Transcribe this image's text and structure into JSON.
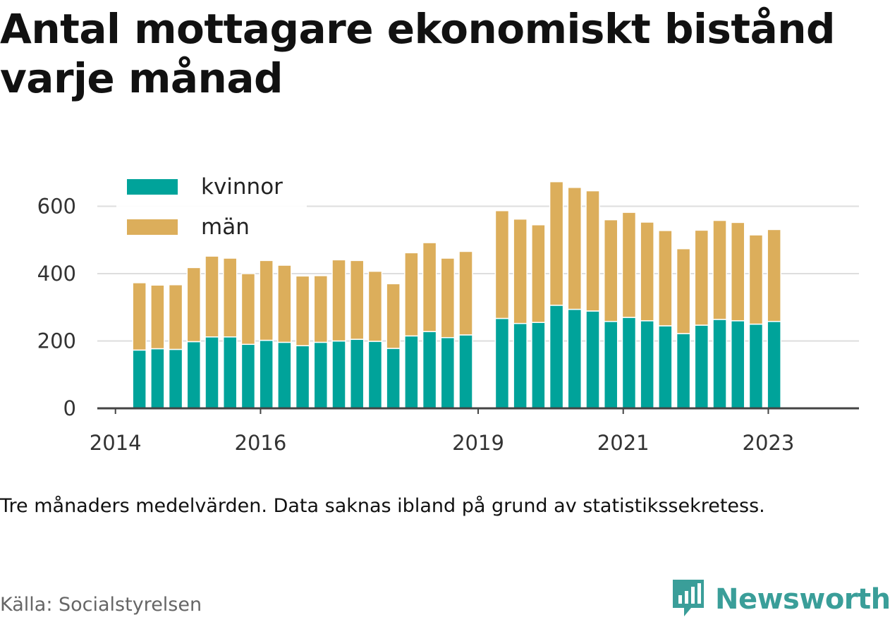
{
  "chart_data": {
    "type": "bar",
    "stacked": true,
    "title": "Antal mottagare ekonomiskt bistånd varje månad",
    "xlabel": "",
    "ylabel": "",
    "ylim": [
      0,
      700
    ],
    "yticks": [
      0,
      200,
      400,
      600
    ],
    "xticks": [
      2014,
      2016,
      2019,
      2021,
      2023
    ],
    "xlim": [
      2013.75,
      2024.25
    ],
    "grid": true,
    "legend_position": "top-left",
    "colors": {
      "kvinnor": "#00a39a",
      "man": "#dcae5b"
    },
    "x": [
      2014.33,
      2014.58,
      2014.83,
      2015.08,
      2015.33,
      2015.58,
      2015.83,
      2016.08,
      2016.33,
      2016.58,
      2016.83,
      2017.08,
      2017.33,
      2017.58,
      2017.83,
      2018.08,
      2018.33,
      2018.58,
      2018.83,
      2019.33,
      2019.58,
      2019.83,
      2020.08,
      2020.33,
      2020.58,
      2020.83,
      2021.08,
      2021.33,
      2021.58,
      2021.83,
      2022.08,
      2022.33,
      2022.58,
      2022.83,
      2023.08
    ],
    "series": [
      {
        "name": "kvinnor",
        "values": [
          173,
          177,
          175,
          198,
          212,
          212,
          190,
          202,
          196,
          186,
          196,
          200,
          205,
          199,
          178,
          215,
          228,
          210,
          218,
          267,
          252,
          255,
          306,
          294,
          289,
          258,
          270,
          260,
          245,
          222,
          247,
          264,
          260,
          250,
          258
        ]
      },
      {
        "name": "män",
        "values": [
          200,
          189,
          192,
          220,
          240,
          234,
          210,
          237,
          229,
          207,
          198,
          241,
          234,
          208,
          192,
          247,
          264,
          236,
          248,
          320,
          310,
          290,
          367,
          362,
          357,
          302,
          312,
          293,
          283,
          252,
          282,
          294,
          292,
          265,
          273
        ]
      }
    ]
  },
  "note": "Tre månaders medelvärden. Data saknas ibland på grund av statistikssekretess.",
  "source": "Källa: Socialstyrelsen",
  "brand": "Newsworthy",
  "icons": {
    "logo": "bar-chart-bubble-icon"
  }
}
